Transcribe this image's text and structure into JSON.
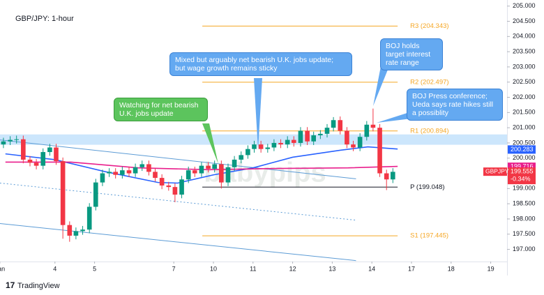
{
  "chart_data": {
    "type": "candlestick",
    "title": "GBP/JPY: 1-hour",
    "brand": "TradingView",
    "watermark": "babypips",
    "up_color": "#089981",
    "down_color": "#f23645",
    "xlim": [
      -0.387,
      12.412
    ],
    "xticks": [
      {
        "value": -0.39,
        "label": "Jan"
      },
      {
        "value": 1,
        "label": "4"
      },
      {
        "value": 2,
        "label": "5"
      },
      {
        "value": 4,
        "label": "7"
      },
      {
        "value": 5,
        "label": "10"
      },
      {
        "value": 6,
        "label": "11"
      },
      {
        "value": 7,
        "label": "12"
      },
      {
        "value": 8,
        "label": "13"
      },
      {
        "value": 9,
        "label": "14"
      },
      {
        "value": 10,
        "label": "17"
      },
      {
        "value": 11,
        "label": "18"
      },
      {
        "value": 12,
        "label": "19"
      }
    ],
    "ylim": [
      196.6,
      205.2
    ],
    "yticks": [
      {
        "value": 197,
        "label": "197.000"
      },
      {
        "value": 197.5,
        "label": "197.500"
      },
      {
        "value": 198,
        "label": "198.000"
      },
      {
        "value": 198.5,
        "label": "198.500"
      },
      {
        "value": 199,
        "label": "199.000"
      },
      {
        "value": 199.5,
        "label": "199.500"
      },
      {
        "value": 200,
        "label": "200.000"
      },
      {
        "value": 200.5,
        "label": "200.500"
      },
      {
        "value": 201,
        "label": "201.000"
      },
      {
        "value": 201.5,
        "label": "201.500"
      },
      {
        "value": 202,
        "label": "202.000"
      },
      {
        "value": 202.5,
        "label": "202.500"
      },
      {
        "value": 203,
        "label": "203.000"
      },
      {
        "value": 203.5,
        "label": "203.500"
      },
      {
        "value": 204,
        "label": "204.000"
      },
      {
        "value": 204.5,
        "label": "204.500"
      },
      {
        "value": 205,
        "label": "205.000"
      }
    ],
    "grid": false,
    "x": [
      -0.3,
      -0.13,
      0.03,
      0.2,
      0.37,
      0.53,
      0.7,
      0.87,
      1.03,
      1.2,
      1.37,
      1.53,
      1.7,
      1.87,
      2.03,
      2.2,
      2.37,
      2.53,
      2.7,
      2.87,
      3.03,
      3.2,
      3.37,
      3.53,
      3.7,
      3.87,
      4.03,
      4.2,
      4.37,
      4.53,
      4.7,
      4.87,
      5.03,
      5.2,
      5.37,
      5.53,
      5.7,
      5.87,
      6.03,
      6.2,
      6.37,
      6.53,
      6.7,
      6.87,
      7.03,
      7.2,
      7.37,
      7.53,
      7.7,
      7.87,
      8.03,
      8.2,
      8.37,
      8.53,
      8.7,
      8.87,
      9.03,
      9.2,
      9.37,
      9.53
    ],
    "open": [
      200.45,
      200.55,
      200.6,
      200.62,
      199.95,
      199.85,
      199.75,
      200.2,
      200.35,
      199.9,
      197.8,
      197.45,
      197.6,
      197.65,
      198.4,
      199.2,
      199.5,
      199.55,
      199.45,
      199.6,
      199.5,
      199.7,
      199.8,
      199.55,
      199.35,
      199.1,
      199.05,
      198.8,
      199.3,
      199.6,
      199.5,
      199.75,
      199.65,
      199.8,
      199.2,
      199.7,
      199.95,
      200.1,
      200.3,
      200.45,
      200.3,
      200.35,
      200.5,
      200.45,
      200.6,
      200.5,
      200.9,
      200.55,
      200.75,
      200.8,
      201.0,
      201.25,
      200.9,
      200.45,
      200.35,
      200.7,
      201.1,
      201.0,
      199.5,
      199.3
    ],
    "high": [
      200.67,
      200.72,
      200.74,
      200.74,
      200.07,
      199.97,
      200.32,
      200.47,
      200.47,
      200.02,
      197.92,
      197.72,
      197.77,
      198.52,
      199.32,
      199.62,
      199.67,
      199.67,
      199.72,
      199.72,
      199.82,
      199.92,
      199.92,
      199.67,
      199.47,
      199.22,
      199.17,
      199.42,
      199.72,
      199.72,
      199.87,
      199.87,
      199.92,
      199.92,
      199.82,
      200.07,
      200.22,
      200.42,
      200.57,
      200.57,
      200.47,
      200.62,
      200.62,
      200.72,
      200.72,
      201.02,
      201.02,
      200.87,
      200.92,
      201.12,
      201.35,
      201.37,
      201.02,
      200.57,
      200.82,
      201.22,
      201.63,
      201.12,
      199.62,
      199.67
    ],
    "low": [
      200.33,
      200.43,
      200.48,
      199.83,
      199.73,
      199.63,
      199.63,
      200.08,
      199.78,
      197.35,
      197.25,
      197.33,
      197.48,
      197.53,
      198.28,
      199.08,
      199.38,
      199.33,
      199.33,
      199.38,
      199.38,
      199.58,
      199.43,
      199.23,
      198.98,
      198.93,
      198.55,
      198.68,
      199.18,
      199.38,
      199.38,
      199.53,
      199.53,
      199.0,
      199.08,
      199.58,
      199.83,
      199.98,
      200.18,
      200.18,
      200.18,
      200.23,
      200.33,
      200.33,
      200.38,
      200.38,
      200.43,
      200.43,
      200.63,
      200.68,
      200.88,
      200.78,
      200.33,
      200.23,
      200.23,
      200.58,
      200.88,
      199.38,
      198.95,
      199.18
    ],
    "close": [
      200.55,
      200.6,
      200.62,
      199.95,
      199.85,
      199.75,
      200.2,
      200.35,
      199.9,
      197.8,
      197.45,
      197.6,
      197.65,
      198.4,
      199.2,
      199.5,
      199.55,
      199.45,
      199.6,
      199.5,
      199.7,
      199.8,
      199.55,
      199.35,
      199.1,
      199.05,
      198.8,
      199.3,
      199.6,
      199.5,
      199.75,
      199.65,
      199.8,
      199.2,
      199.7,
      199.95,
      200.1,
      200.3,
      200.45,
      200.3,
      200.35,
      200.5,
      200.45,
      200.6,
      200.5,
      200.9,
      200.55,
      200.75,
      200.8,
      201.0,
      201.25,
      200.9,
      200.45,
      200.35,
      200.7,
      201.1,
      201.0,
      199.5,
      199.3,
      199.55
    ],
    "lines": [
      {
        "color": "#2962ff",
        "x": [
          -0.25,
          1,
          2.25,
          3.6,
          4.1,
          5,
          6,
          7,
          8.2,
          8.9,
          9.65
        ],
        "values": [
          200.14,
          199.95,
          199.56,
          199.2,
          199.18,
          199.45,
          199.68,
          200.03,
          200.26,
          200.37,
          200.3
        ]
      },
      {
        "color": "#e91e8c",
        "x": [
          -0.25,
          1.4,
          3.1,
          4.9,
          6.6,
          8.4,
          9.65
        ],
        "values": [
          199.87,
          199.87,
          199.68,
          199.62,
          199.66,
          199.68,
          199.73
        ]
      }
    ],
    "trendlines": [
      {
        "color": "#5b9bd5",
        "dash": false,
        "x": [
          -0.39,
          8.6
        ],
        "values": [
          200.6,
          199.32
        ]
      },
      {
        "color": "#5b9bd5",
        "dash": true,
        "x": [
          -0.39,
          8.6
        ],
        "values": [
          199.18,
          197.96
        ]
      },
      {
        "color": "#5b9bd5",
        "dash": false,
        "x": [
          -0.39,
          8.6
        ],
        "values": [
          197.85,
          196.63
        ]
      }
    ],
    "zone": [
      200.44,
      200.78
    ],
    "pivot_x": [
      4.72,
      9.65
    ],
    "pivots": [
      {
        "label": "R3 (204.343)",
        "value": 204.343,
        "color": "#f5a623"
      },
      {
        "label": "R2 (202.497)",
        "value": 202.497,
        "color": "#f5a623"
      },
      {
        "label": "R1 (200.894)",
        "value": 200.894,
        "color": "#f5a623"
      },
      {
        "label": "P (199.048)",
        "value": 199.048,
        "color": "#131722"
      },
      {
        "label": "S1 (197.445)",
        "value": 197.445,
        "color": "#f5a623"
      }
    ],
    "price_tags": [
      {
        "label": "200.283",
        "value": 200.283,
        "color": "#2962ff"
      },
      {
        "label": "199.716",
        "value": 199.716,
        "color": "#e91e8c"
      }
    ],
    "last_price": {
      "symbol": "GBPJPY",
      "label": "199.555",
      "value": 199.555,
      "change": "-0.34%",
      "color": "#f23645"
    },
    "annotations": [
      {
        "lines": [
          "Watching for net bearish",
          "U.K. jobs update"
        ]
      },
      {
        "lines": [
          "Mixed but arguably net bearish U.K. jobs update;",
          "but wage growth remains sticky"
        ]
      },
      {
        "lines": [
          "BOJ holds",
          "target interest",
          "rate range"
        ]
      },
      {
        "lines": [
          "BOJ Press conference;",
          "Ueda says rate hikes still",
          "a possiblity"
        ]
      }
    ]
  }
}
